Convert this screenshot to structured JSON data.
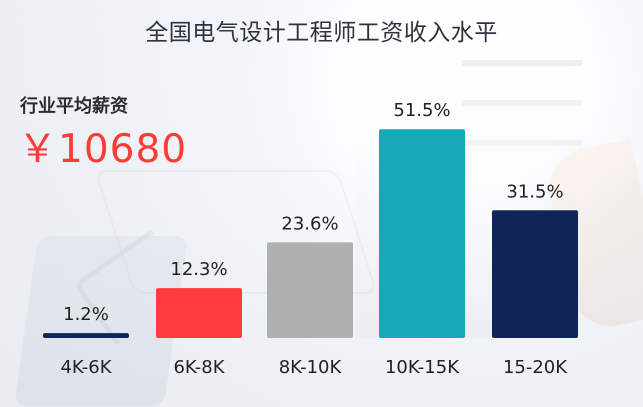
{
  "chart_data": {
    "type": "bar",
    "title": "全国电气设计工程师工资收入水平",
    "categories": [
      "4K-6K",
      "6K-8K",
      "8K-10K",
      "10K-15K",
      "15-20K"
    ],
    "values": [
      1.2,
      12.3,
      23.6,
      51.5,
      31.5
    ],
    "value_labels": [
      "1.2%",
      "12.3%",
      "23.6%",
      "51.5%",
      "31.5%"
    ],
    "ylim": [
      0,
      55
    ],
    "colors": [
      "#0f2558",
      "#ff3b3f",
      "#b0b0b0",
      "#17a8b6",
      "#0f2558"
    ],
    "grid": false,
    "legend": "none"
  },
  "summary": {
    "label": "行业平均薪资",
    "value": "￥10680"
  }
}
